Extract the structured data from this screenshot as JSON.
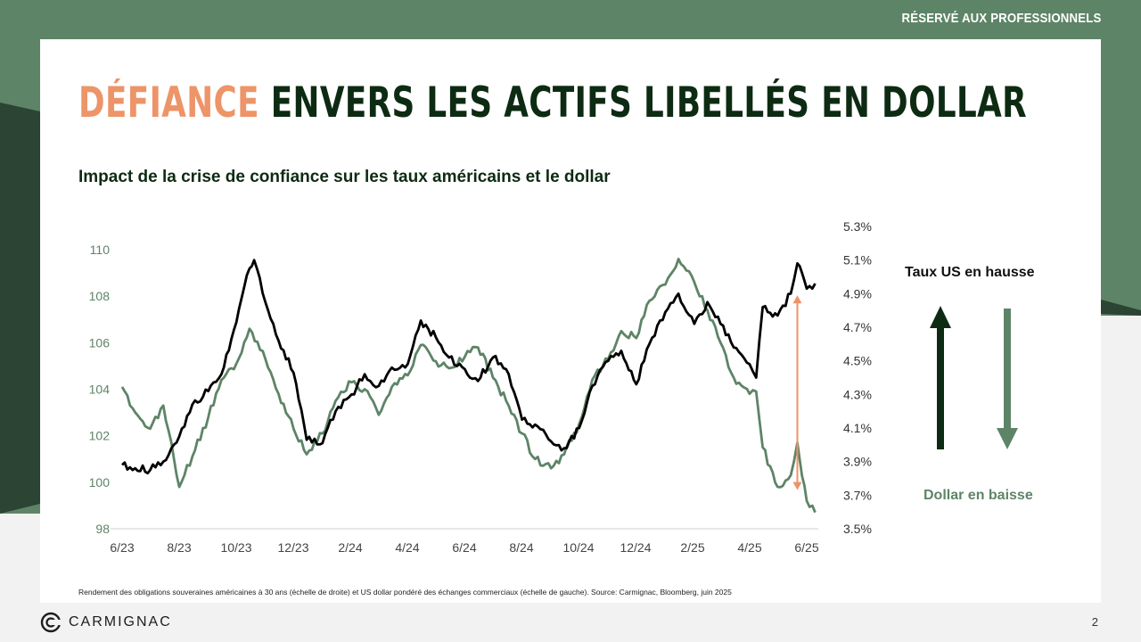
{
  "header": {
    "badge": "RÉSERVÉ AUX PROFESSIONNELS"
  },
  "title": {
    "highlight": "DÉFIANCE",
    "rest": " ENVERS LES ACTIFS LIBELLÉS EN DOLLAR"
  },
  "subtitle": "Impact de la crise de confiance sur les taux américains et le dollar",
  "annotations": {
    "up_label": "Taux US en hausse",
    "down_label": "Dollar en baisse"
  },
  "colors": {
    "accent": "#ed9468",
    "green": "#5e8467",
    "dark_green": "#0d2b12",
    "yield_line": "#000000",
    "dollar_line": "#5e8467"
  },
  "footnote": "Rendement des obligations souveraines américaines à 30 ans (échelle de droite) et US dollar pondéré des échanges commerciaux (échelle de gauche). Source: Carmignac, Bloomberg, juin 2025",
  "logo": {
    "text": "CARMIGNAC",
    "icon": "carmignac-c-logo"
  },
  "page_number": "2",
  "chart_data": {
    "type": "line",
    "x_ticks": [
      "6/23",
      "8/23",
      "10/23",
      "12/23",
      "2/24",
      "4/24",
      "6/24",
      "8/24",
      "10/24",
      "12/24",
      "2/25",
      "4/25",
      "6/25"
    ],
    "y_left": {
      "ticks": [
        "98",
        "100",
        "102",
        "104",
        "106",
        "108",
        "110"
      ],
      "range": [
        98,
        110
      ]
    },
    "y_right": {
      "ticks": [
        "3.5%",
        "3.7%",
        "3.9%",
        "4.1%",
        "4.3%",
        "4.5%",
        "4.7%",
        "4.9%",
        "5.1%",
        "5.3%"
      ],
      "range": [
        3.5,
        5.3
      ]
    },
    "series": [
      {
        "axis": "right",
        "color": "#000000",
        "x": [
          "2023-06-01",
          "2023-06-15",
          "2023-07-01",
          "2023-07-15",
          "2023-08-01",
          "2023-08-15",
          "2023-09-01",
          "2023-09-15",
          "2023-10-01",
          "2023-10-15",
          "2023-10-20",
          "2023-11-01",
          "2023-11-15",
          "2023-12-01",
          "2023-12-15",
          "2024-01-01",
          "2024-01-15",
          "2024-02-01",
          "2024-02-15",
          "2024-03-01",
          "2024-03-15",
          "2024-04-01",
          "2024-04-15",
          "2024-05-01",
          "2024-05-15",
          "2024-06-01",
          "2024-06-15",
          "2024-07-01",
          "2024-07-15",
          "2024-08-01",
          "2024-08-15",
          "2024-09-01",
          "2024-09-15",
          "2024-10-01",
          "2024-10-15",
          "2024-11-01",
          "2024-11-15",
          "2024-12-01",
          "2024-12-15",
          "2025-01-01",
          "2025-01-15",
          "2025-02-01",
          "2025-02-15",
          "2025-03-01",
          "2025-03-15",
          "2025-04-01",
          "2025-04-08",
          "2025-04-15",
          "2025-05-01",
          "2025-05-15",
          "2025-05-22",
          "2025-06-01",
          "2025-06-10"
        ],
        "y": [
          3.88,
          3.86,
          3.85,
          3.9,
          4.05,
          4.24,
          4.32,
          4.42,
          4.73,
          5.05,
          5.1,
          4.85,
          4.62,
          4.43,
          4.03,
          4.01,
          4.2,
          4.3,
          4.42,
          4.35,
          4.46,
          4.48,
          4.74,
          4.64,
          4.52,
          4.45,
          4.38,
          4.52,
          4.45,
          4.15,
          4.12,
          4.02,
          3.98,
          4.1,
          4.35,
          4.5,
          4.56,
          4.36,
          4.6,
          4.79,
          4.9,
          4.72,
          4.85,
          4.72,
          4.58,
          4.48,
          4.4,
          4.82,
          4.77,
          4.9,
          5.08,
          4.93,
          4.96
        ]
      },
      {
        "axis": "left",
        "color": "#5e8467",
        "x": [
          "2023-06-01",
          "2023-06-15",
          "2023-07-01",
          "2023-07-15",
          "2023-08-01",
          "2023-08-15",
          "2023-09-01",
          "2023-09-15",
          "2023-10-01",
          "2023-10-15",
          "2023-11-01",
          "2023-11-15",
          "2023-12-01",
          "2023-12-15",
          "2024-01-01",
          "2024-01-15",
          "2024-02-01",
          "2024-02-15",
          "2024-03-01",
          "2024-03-15",
          "2024-04-01",
          "2024-04-15",
          "2024-05-01",
          "2024-05-15",
          "2024-06-01",
          "2024-06-15",
          "2024-07-01",
          "2024-07-15",
          "2024-08-01",
          "2024-08-15",
          "2024-09-01",
          "2024-09-15",
          "2024-10-01",
          "2024-10-15",
          "2024-11-01",
          "2024-11-15",
          "2024-12-01",
          "2024-12-15",
          "2025-01-01",
          "2025-01-15",
          "2025-02-01",
          "2025-02-15",
          "2025-03-01",
          "2025-03-15",
          "2025-04-01",
          "2025-04-08",
          "2025-04-15",
          "2025-05-01",
          "2025-05-15",
          "2025-05-22",
          "2025-06-01",
          "2025-06-10"
        ],
        "y": [
          104.1,
          103.0,
          102.3,
          103.3,
          99.8,
          101.1,
          102.8,
          104.4,
          105.1,
          106.6,
          105.3,
          103.8,
          102.3,
          101.2,
          102.1,
          103.5,
          104.3,
          104.0,
          102.9,
          104.1,
          104.6,
          105.9,
          105.2,
          104.9,
          105.4,
          105.8,
          104.5,
          103.5,
          102.1,
          101.0,
          100.6,
          101.2,
          102.5,
          104.4,
          105.3,
          106.5,
          106.2,
          107.8,
          108.5,
          109.6,
          108.6,
          107.4,
          106.0,
          104.5,
          103.8,
          103.9,
          101.5,
          99.8,
          100.3,
          101.7,
          99.2,
          98.7
        ]
      }
    ],
    "annotation_arrow": {
      "x": "2025-05-22",
      "from": 4.89,
      "to": 3.73,
      "color": "#ed9468"
    }
  }
}
